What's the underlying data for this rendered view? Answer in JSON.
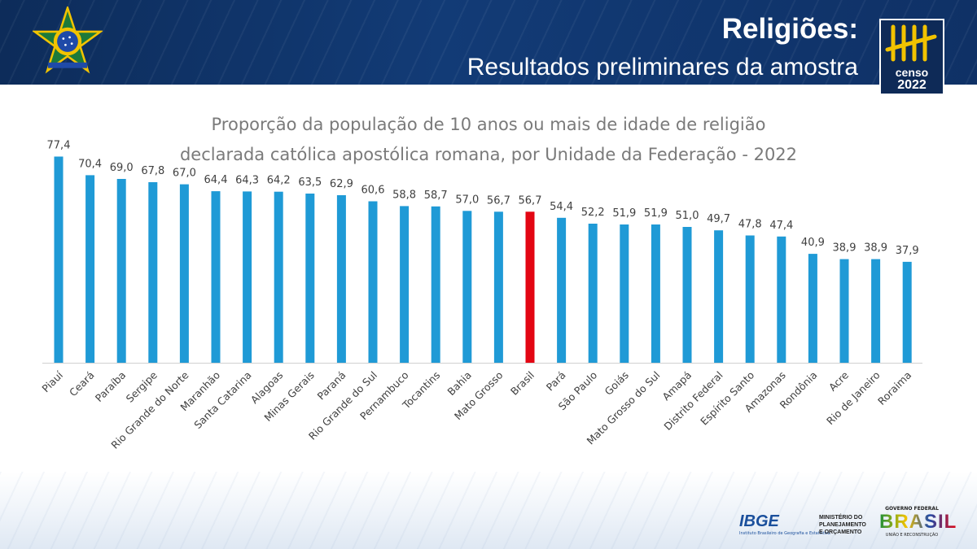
{
  "header": {
    "title": "Religiões:",
    "subtitle": "Resultados preliminares da amostra",
    "censo_label": "censo",
    "censo_year": "2022"
  },
  "chart_data": {
    "type": "bar",
    "title_line1": "Proporção da população de 10 anos ou mais de idade de religião",
    "title_line2": "declarada católica apostólica romana, por Unidade da Federação - 2022",
    "categories": [
      "Piauí",
      "Ceará",
      "Paraíba",
      "Sergipe",
      "Rio Grande do Norte",
      "Maranhão",
      "Santa Catarina",
      "Alagoas",
      "Minas Gerais",
      "Paraná",
      "Rio Grande do Sul",
      "Pernambuco",
      "Tocantins",
      "Bahia",
      "Mato Grosso",
      "Brasil",
      "Pará",
      "São Paulo",
      "Goiás",
      "Mato Grosso do Sul",
      "Amapá",
      "Distrito Federal",
      "Espírito Santo",
      "Amazonas",
      "Rondônia",
      "Acre",
      "Rio de Janeiro",
      "Roraima"
    ],
    "values": [
      77.4,
      70.4,
      69.0,
      67.8,
      67.0,
      64.4,
      64.3,
      64.2,
      63.5,
      62.9,
      60.6,
      58.8,
      58.7,
      57.0,
      56.7,
      56.7,
      54.4,
      52.2,
      51.9,
      51.9,
      51.0,
      49.7,
      47.8,
      47.4,
      40.9,
      38.9,
      38.9,
      37.9
    ],
    "value_labels": [
      "77,4",
      "70,4",
      "69,0",
      "67,8",
      "67,0",
      "64,4",
      "64,3",
      "64,2",
      "63,5",
      "62,9",
      "60,6",
      "58,8",
      "58,7",
      "57,0",
      "56,7",
      "56,7",
      "54,4",
      "52,2",
      "51,9",
      "51,9",
      "51,0",
      "49,7",
      "47,8",
      "47,4",
      "40,9",
      "38,9",
      "38,9",
      "37,9"
    ],
    "highlight_category": "Brasil",
    "colors": {
      "bar": "#1f9ad6",
      "highlight": "#e30613",
      "label": "#404040",
      "axis": "#d0d0d0"
    },
    "ylim": [
      0,
      80
    ],
    "grid": false,
    "legend": "none"
  },
  "footer": {
    "ibge_name": "IBGE",
    "ibge_full": "Instituto Brasileiro de Geografia e Estatística",
    "ministry_lines": [
      "MINISTÉRIO DO",
      "PLANEJAMENTO",
      "E ORÇAMENTO"
    ],
    "gov_top": "GOVERNO FEDERAL",
    "gov_word": "BRASIL",
    "gov_tagline": "UNIÃO E RECONSTRUÇÃO"
  }
}
